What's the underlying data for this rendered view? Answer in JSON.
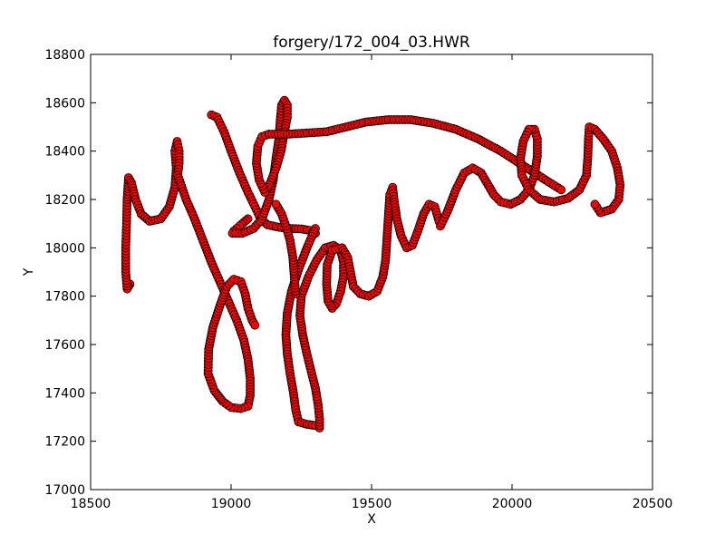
{
  "chart_data": {
    "type": "scatter",
    "title": "forgery/172_004_03.HWR",
    "xlabel": "X",
    "ylabel": "Y",
    "xlim": [
      18500,
      20500
    ],
    "ylim": [
      17000,
      18800
    ],
    "x_ticks": [
      18500,
      19000,
      19500,
      20000,
      20500
    ],
    "y_ticks": [
      17000,
      17200,
      17400,
      17600,
      17800,
      18000,
      18200,
      18400,
      18600,
      18800
    ],
    "grid": false,
    "marker": {
      "shape": "circle",
      "face_color": "#ff0000",
      "edge_color": "#000000"
    },
    "series": [
      {
        "strokes": [
          [
            [
              18640,
              17850
            ],
            [
              18630,
              17830
            ],
            [
              18625,
              17900
            ],
            [
              18625,
              18000
            ],
            [
              18628,
              18100
            ],
            [
              18630,
              18200
            ],
            [
              18635,
              18290
            ],
            [
              18645,
              18270
            ],
            [
              18660,
              18200
            ],
            [
              18680,
              18140
            ],
            [
              18710,
              18110
            ],
            [
              18750,
              18120
            ],
            [
              18780,
              18170
            ],
            [
              18800,
              18250
            ],
            [
              18805,
              18330
            ],
            [
              18800,
              18400
            ],
            [
              18808,
              18440
            ],
            [
              18815,
              18400
            ],
            [
              18815,
              18350
            ],
            [
              18810,
              18300
            ]
          ],
          [
            [
              18810,
              18300
            ],
            [
              18840,
              18200
            ],
            [
              18870,
              18120
            ],
            [
              18900,
              18030
            ],
            [
              18930,
              17940
            ],
            [
              18960,
              17860
            ],
            [
              18990,
              17780
            ],
            [
              19020,
              17700
            ],
            [
              19045,
              17620
            ],
            [
              19060,
              17540
            ],
            [
              19068,
              17460
            ],
            [
              19068,
              17390
            ],
            [
              19060,
              17345
            ],
            [
              19035,
              17335
            ],
            [
              19000,
              17340
            ],
            [
              18970,
              17365
            ],
            [
              18940,
              17410
            ],
            [
              18918,
              17480
            ],
            [
              18920,
              17580
            ],
            [
              18935,
              17670
            ],
            [
              18960,
              17760
            ],
            [
              18985,
              17840
            ],
            [
              19010,
              17870
            ],
            [
              19035,
              17860
            ],
            [
              19050,
              17810
            ],
            [
              19060,
              17750
            ],
            [
              19075,
              17700
            ],
            [
              19085,
              17680
            ]
          ],
          [
            [
              18930,
              18550
            ],
            [
              18950,
              18540
            ],
            [
              18975,
              18480
            ],
            [
              19000,
              18400
            ],
            [
              19030,
              18310
            ],
            [
              19060,
              18230
            ],
            [
              19085,
              18170
            ],
            [
              19105,
              18120
            ],
            [
              19130,
              18095
            ],
            [
              19170,
              18085
            ],
            [
              19210,
              18080
            ],
            [
              19250,
              18078
            ],
            [
              19280,
              18072
            ],
            [
              19300,
              18060
            ]
          ],
          [
            [
              19060,
              18120
            ],
            [
              19030,
              18090
            ],
            [
              19010,
              18070
            ],
            [
              19005,
              18060
            ],
            [
              19040,
              18060
            ],
            [
              19080,
              18080
            ],
            [
              19110,
              18120
            ],
            [
              19135,
              18200
            ],
            [
              19150,
              18280
            ],
            [
              19160,
              18370
            ],
            [
              19170,
              18450
            ],
            [
              19175,
              18530
            ],
            [
              19180,
              18590
            ],
            [
              19190,
              18610
            ],
            [
              19200,
              18590
            ],
            [
              19200,
              18540
            ],
            [
              19190,
              18480
            ],
            [
              19178,
              18400
            ],
            [
              19160,
              18330
            ],
            [
              19140,
              18270
            ],
            [
              19120,
              18230
            ],
            [
              19100,
              18280
            ],
            [
              19090,
              18350
            ],
            [
              19095,
              18420
            ],
            [
              19110,
              18460
            ],
            [
              19135,
              18470
            ]
          ],
          [
            [
              19135,
              18470
            ],
            [
              19200,
              18470
            ],
            [
              19270,
              18475
            ],
            [
              19340,
              18480
            ],
            [
              19410,
              18500
            ],
            [
              19480,
              18520
            ],
            [
              19560,
              18530
            ],
            [
              19640,
              18530
            ],
            [
              19720,
              18515
            ],
            [
              19800,
              18490
            ],
            [
              19880,
              18450
            ],
            [
              19960,
              18400
            ],
            [
              20040,
              18340
            ],
            [
              20120,
              18280
            ],
            [
              20175,
              18240
            ]
          ],
          [
            [
              19300,
              18080
            ],
            [
              19270,
              18000
            ],
            [
              19240,
              17910
            ],
            [
              19215,
              17820
            ],
            [
              19200,
              17730
            ],
            [
              19195,
              17640
            ],
            [
              19200,
              17560
            ],
            [
              19210,
              17480
            ],
            [
              19222,
              17400
            ],
            [
              19230,
              17330
            ],
            [
              19240,
              17280
            ],
            [
              19270,
              17270
            ],
            [
              19300,
              17265
            ],
            [
              19315,
              17255
            ],
            [
              19315,
              17290
            ],
            [
              19310,
              17350
            ],
            [
              19300,
              17420
            ],
            [
              19285,
              17490
            ],
            [
              19270,
              17560
            ],
            [
              19255,
              17640
            ],
            [
              19245,
              17720
            ],
            [
              19250,
              17800
            ],
            [
              19275,
              17880
            ],
            [
              19305,
              17950
            ],
            [
              19335,
              18000
            ],
            [
              19365,
              18010
            ],
            [
              19390,
              17990
            ],
            [
              19400,
              17940
            ],
            [
              19400,
              17880
            ],
            [
              19390,
              17820
            ],
            [
              19375,
              17770
            ],
            [
              19360,
              17750
            ],
            [
              19345,
              17780
            ],
            [
              19340,
              17850
            ],
            [
              19342,
              17930
            ],
            [
              19360,
              17990
            ],
            [
              19395,
              18000
            ],
            [
              19415,
              17960
            ],
            [
              19425,
              17900
            ],
            [
              19435,
              17840
            ],
            [
              19460,
              17810
            ],
            [
              19490,
              17800
            ],
            [
              19520,
              17820
            ],
            [
              19540,
              17880
            ],
            [
              19550,
              17950
            ],
            [
              19555,
              18040
            ],
            [
              19560,
              18130
            ],
            [
              19565,
              18220
            ],
            [
              19575,
              18250
            ],
            [
              19580,
              18200
            ],
            [
              19590,
              18120
            ],
            [
              19605,
              18050
            ],
            [
              19625,
              18000
            ],
            [
              19645,
              18010
            ],
            [
              19665,
              18070
            ],
            [
              19685,
              18140
            ],
            [
              19705,
              18180
            ],
            [
              19725,
              18170
            ],
            [
              19740,
              18110
            ],
            [
              19745,
              18090
            ],
            [
              19770,
              18150
            ],
            [
              19800,
              18240
            ],
            [
              19830,
              18310
            ],
            [
              19860,
              18330
            ],
            [
              19890,
              18310
            ],
            [
              19915,
              18260
            ],
            [
              19935,
              18220
            ],
            [
              19960,
              18190
            ],
            [
              19995,
              18180
            ],
            [
              20030,
              18200
            ],
            [
              20060,
              18240
            ],
            [
              20080,
              18300
            ],
            [
              20090,
              18380
            ],
            [
              20090,
              18450
            ],
            [
              20080,
              18490
            ],
            [
              20060,
              18490
            ],
            [
              20040,
              18440
            ],
            [
              20030,
              18370
            ],
            [
              20035,
              18300
            ],
            [
              20060,
              18240
            ],
            [
              20100,
              18200
            ],
            [
              20150,
              18190
            ],
            [
              20200,
              18205
            ],
            [
              20240,
              18240
            ],
            [
              20265,
              18300
            ],
            [
              20270,
              18380
            ],
            [
              20272,
              18450
            ],
            [
              20275,
              18500
            ],
            [
              20295,
              18490
            ],
            [
              20325,
              18450
            ],
            [
              20355,
              18400
            ],
            [
              20375,
              18330
            ],
            [
              20385,
              18260
            ],
            [
              20380,
              18200
            ],
            [
              20355,
              18160
            ],
            [
              20315,
              18145
            ],
            [
              20295,
              18180
            ]
          ],
          [
            [
              19230,
              17810
            ],
            [
              19225,
              17880
            ],
            [
              19220,
              17960
            ],
            [
              19210,
              18030
            ],
            [
              19195,
              18090
            ],
            [
              19180,
              18140
            ],
            [
              19160,
              18180
            ]
          ]
        ]
      }
    ]
  }
}
